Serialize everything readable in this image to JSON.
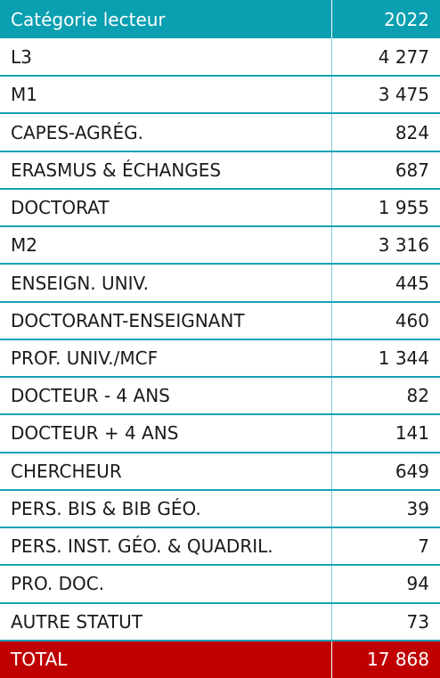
{
  "chart_data": {
    "type": "table",
    "columns": [
      "Catégorie lecteur",
      "2022"
    ],
    "rows": [
      {
        "label": "L3",
        "value": "4 277"
      },
      {
        "label": "M1",
        "value": "3 475"
      },
      {
        "label": "CAPES-AGRÉG.",
        "value": "824"
      },
      {
        "label": "ERASMUS & ÉCHANGES",
        "value": "687"
      },
      {
        "label": "DOCTORAT",
        "value": "1 955"
      },
      {
        "label": "M2",
        "value": "3 316"
      },
      {
        "label": "ENSEIGN. UNIV.",
        "value": "445"
      },
      {
        "label": "DOCTORANT-ENSEIGNANT",
        "value": "460"
      },
      {
        "label": "PROF. UNIV./MCF",
        "value": "1 344"
      },
      {
        "label": "DOCTEUR - 4 ANS",
        "value": "82"
      },
      {
        "label": "DOCTEUR + 4 ANS",
        "value": "141"
      },
      {
        "label": "CHERCHEUR",
        "value": "649"
      },
      {
        "label": "PERS. BIS & BIB GÉO.",
        "value": "39"
      },
      {
        "label": "PERS. INST. GÉO. & QUADRIL.",
        "value": "7"
      },
      {
        "label": "PRO. DOC.",
        "value": "94"
      },
      {
        "label": "AUTRE STATUT",
        "value": "73"
      }
    ],
    "total": {
      "label": "TOTAL",
      "value": "17 868"
    }
  },
  "colors": {
    "header_background": "#0a9fb1",
    "row_separator": "#16a2b6",
    "total_background": "#c00000"
  }
}
